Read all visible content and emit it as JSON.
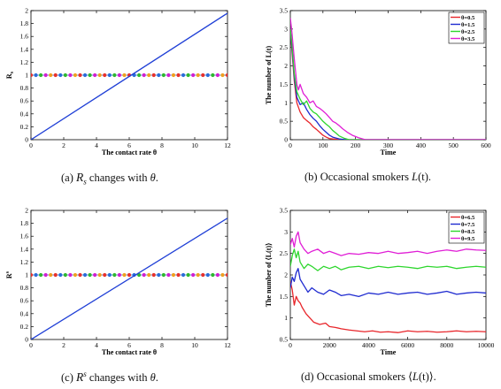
{
  "chart_data": [
    {
      "id": "a",
      "type": "line",
      "xlabel": "The contact rate θ",
      "ylabel": "R_s",
      "ylabel_main": "R",
      "ylabel_sub": "s",
      "ylabel_sup": "",
      "xlim": [
        0,
        12
      ],
      "ylim": [
        0,
        2
      ],
      "xticks": [
        0,
        2,
        4,
        6,
        8,
        10,
        12
      ],
      "yticks": [
        0,
        0.2,
        0.4,
        0.6,
        0.8,
        1,
        1.2,
        1.4,
        1.6,
        1.8,
        2
      ],
      "ytick_labels": [
        "0",
        "0.2",
        "0.4",
        "0.6",
        "0.8",
        "1",
        "1.2",
        "1.4",
        "1.6",
        "1.8",
        "2"
      ],
      "series": [
        {
          "color": "#1f3fd6",
          "x": [
            0,
            12
          ],
          "y": [
            0,
            1.96
          ]
        }
      ],
      "reference_line": {
        "y": 1,
        "x_start": 0,
        "x_step": 0.3,
        "count": 41,
        "colors": [
          "#e8312b",
          "#2b6cd9",
          "#2fb82f",
          "#d11fd1",
          "#f0a020"
        ]
      },
      "caption": {
        "label": "(a)",
        "pre": "",
        "sym": "R",
        "sub": "s",
        "sup": "",
        "text": "changes with",
        "var": "θ",
        "end": "."
      }
    },
    {
      "id": "b",
      "type": "line",
      "xlabel": "Time",
      "ylabel": "The number of L(t)",
      "xlim": [
        0,
        600
      ],
      "ylim": [
        0,
        3.5
      ],
      "xticks": [
        0,
        100,
        200,
        300,
        400,
        500,
        600
      ],
      "yticks": [
        0,
        0.5,
        1,
        1.5,
        2,
        2.5,
        3,
        3.5
      ],
      "ytick_labels": [
        "0",
        "0.5",
        "1",
        "1.5",
        "2",
        "2.5",
        "3",
        "3.5"
      ],
      "legend": "top-right",
      "series": [
        {
          "name": "θ=0.5",
          "color": "#e8262b",
          "x": [
            0,
            5,
            12,
            20,
            30,
            40,
            50,
            60,
            70,
            80,
            90,
            100,
            110,
            120,
            140,
            160,
            600
          ],
          "y": [
            3.0,
            2.4,
            1.6,
            1.0,
            0.75,
            0.6,
            0.52,
            0.45,
            0.35,
            0.28,
            0.2,
            0.12,
            0.07,
            0.03,
            0.01,
            0,
            0
          ]
        },
        {
          "name": "θ=1.5",
          "color": "#1f2bd0",
          "x": [
            0,
            5,
            12,
            20,
            30,
            40,
            50,
            60,
            70,
            80,
            90,
            100,
            110,
            120,
            130,
            150,
            170,
            600
          ],
          "y": [
            3.0,
            2.5,
            1.7,
            1.15,
            0.95,
            1.0,
            0.82,
            0.68,
            0.58,
            0.5,
            0.38,
            0.28,
            0.2,
            0.12,
            0.07,
            0.02,
            0,
            0
          ]
        },
        {
          "name": "θ=2.5",
          "color": "#2ed62e",
          "x": [
            0,
            5,
            12,
            20,
            30,
            40,
            50,
            60,
            70,
            80,
            90,
            100,
            110,
            120,
            130,
            140,
            150,
            165,
            180,
            600
          ],
          "y": [
            3.0,
            2.6,
            1.8,
            1.3,
            1.1,
            0.95,
            1.05,
            0.85,
            0.75,
            0.7,
            0.6,
            0.5,
            0.42,
            0.35,
            0.25,
            0.18,
            0.1,
            0.04,
            0,
            0
          ]
        },
        {
          "name": "θ=3.5",
          "color": "#e01fd6",
          "x": [
            0,
            5,
            12,
            20,
            25,
            30,
            40,
            50,
            60,
            70,
            80,
            90,
            100,
            110,
            120,
            130,
            140,
            150,
            160,
            175,
            190,
            210,
            230,
            600
          ],
          "y": [
            3.3,
            2.9,
            2.2,
            1.5,
            1.35,
            1.5,
            1.25,
            1.15,
            1.0,
            1.05,
            0.9,
            0.85,
            0.78,
            0.7,
            0.6,
            0.5,
            0.45,
            0.38,
            0.3,
            0.2,
            0.12,
            0.05,
            0,
            0
          ]
        }
      ],
      "caption": {
        "label": "(b)",
        "pre": "Occasional smokers",
        "var": "L",
        "post": "(t)."
      }
    },
    {
      "id": "c",
      "type": "line",
      "xlabel": "The contact rate θ",
      "ylabel": "R^s",
      "ylabel_main": "R",
      "ylabel_sub": "",
      "ylabel_sup": "s",
      "xlim": [
        0,
        12
      ],
      "ylim": [
        0,
        2
      ],
      "xticks": [
        0,
        2,
        4,
        6,
        8,
        10,
        12
      ],
      "yticks": [
        0,
        0.2,
        0.4,
        0.6,
        0.8,
        1,
        1.2,
        1.4,
        1.6,
        1.8,
        2
      ],
      "ytick_labels": [
        "0",
        "0.2",
        "0.4",
        "0.6",
        "0.8",
        "1",
        "1.2",
        "1.4",
        "1.6",
        "1.8",
        "2"
      ],
      "series": [
        {
          "color": "#1f3fd6",
          "x": [
            0,
            12
          ],
          "y": [
            0,
            1.88
          ]
        }
      ],
      "reference_line": {
        "y": 1,
        "x_start": 0,
        "x_step": 0.3,
        "count": 41,
        "colors": [
          "#e8312b",
          "#2b6cd9",
          "#2fb82f",
          "#d11fd1",
          "#f0a020"
        ]
      },
      "caption": {
        "label": "(c)",
        "pre": "",
        "sym": "R",
        "sub": "",
        "sup": "s",
        "text": "changes with",
        "var": "θ",
        "end": "."
      }
    },
    {
      "id": "d",
      "type": "line",
      "xlabel": "Time",
      "ylabel": "The number of ⟨L(t)⟩",
      "xlim": [
        0,
        10000
      ],
      "ylim": [
        0.5,
        3.5
      ],
      "xticks": [
        0,
        2000,
        4000,
        6000,
        8000,
        10000
      ],
      "yticks": [
        0.5,
        1,
        1.5,
        2,
        2.5,
        3,
        3.5
      ],
      "ytick_labels": [
        "0.5",
        "1",
        "1.5",
        "2",
        "2.5",
        "3",
        "3.5"
      ],
      "legend": "top-right",
      "series": [
        {
          "name": "θ=6.5",
          "color": "#e8262b",
          "x": [
            0,
            100,
            200,
            300,
            400,
            500,
            600,
            800,
            1000,
            1200,
            1500,
            1800,
            2000,
            2300,
            2600,
            3000,
            3400,
            3800,
            4200,
            4600,
            5000,
            5500,
            6000,
            6500,
            7000,
            7500,
            8000,
            8500,
            9000,
            9500,
            10000
          ],
          "y": [
            1.85,
            1.65,
            1.3,
            1.5,
            1.4,
            1.35,
            1.25,
            1.1,
            1.0,
            0.9,
            0.85,
            0.88,
            0.8,
            0.78,
            0.75,
            0.72,
            0.7,
            0.68,
            0.7,
            0.67,
            0.68,
            0.66,
            0.7,
            0.68,
            0.69,
            0.67,
            0.68,
            0.7,
            0.68,
            0.69,
            0.68
          ]
        },
        {
          "name": "θ=7.5",
          "color": "#1f2bd0",
          "x": [
            0,
            100,
            200,
            300,
            400,
            500,
            700,
            900,
            1100,
            1400,
            1700,
            2000,
            2300,
            2600,
            3000,
            3500,
            4000,
            4500,
            5000,
            5500,
            6000,
            6500,
            7000,
            7500,
            8000,
            8500,
            9000,
            9500,
            10000
          ],
          "y": [
            1.7,
            1.95,
            1.85,
            2.05,
            2.15,
            1.9,
            1.75,
            1.6,
            1.7,
            1.6,
            1.55,
            1.65,
            1.6,
            1.52,
            1.55,
            1.5,
            1.58,
            1.55,
            1.6,
            1.55,
            1.58,
            1.6,
            1.55,
            1.58,
            1.62,
            1.55,
            1.58,
            1.6,
            1.58
          ]
        },
        {
          "name": "θ=8.5",
          "color": "#2ed62e",
          "x": [
            0,
            100,
            200,
            300,
            400,
            500,
            700,
            900,
            1100,
            1400,
            1700,
            2000,
            2300,
            2600,
            3000,
            3500,
            4000,
            4500,
            5000,
            5500,
            6000,
            6500,
            7000,
            7500,
            8000,
            8500,
            9000,
            9500,
            10000
          ],
          "y": [
            2.2,
            2.45,
            2.6,
            2.4,
            2.55,
            2.3,
            2.15,
            2.25,
            2.2,
            2.1,
            2.2,
            2.15,
            2.2,
            2.12,
            2.18,
            2.2,
            2.15,
            2.2,
            2.17,
            2.2,
            2.18,
            2.15,
            2.2,
            2.18,
            2.2,
            2.15,
            2.18,
            2.2,
            2.18
          ]
        },
        {
          "name": "θ=9.5",
          "color": "#e01fd6",
          "x": [
            0,
            100,
            200,
            300,
            400,
            500,
            700,
            900,
            1100,
            1400,
            1700,
            2000,
            2300,
            2600,
            3000,
            3500,
            4000,
            4500,
            5000,
            5500,
            6000,
            6500,
            7000,
            7500,
            8000,
            8500,
            9000,
            9500,
            10000
          ],
          "y": [
            2.7,
            2.85,
            2.65,
            2.9,
            3.0,
            2.75,
            2.6,
            2.5,
            2.55,
            2.6,
            2.5,
            2.55,
            2.5,
            2.45,
            2.5,
            2.48,
            2.52,
            2.5,
            2.55,
            2.5,
            2.52,
            2.55,
            2.5,
            2.55,
            2.58,
            2.55,
            2.6,
            2.58,
            2.57
          ]
        }
      ],
      "caption": {
        "label": "(d)",
        "pre": "Occasional smokers",
        "var": "L",
        "post": "(t)⟩.",
        "open": "⟨"
      }
    }
  ]
}
